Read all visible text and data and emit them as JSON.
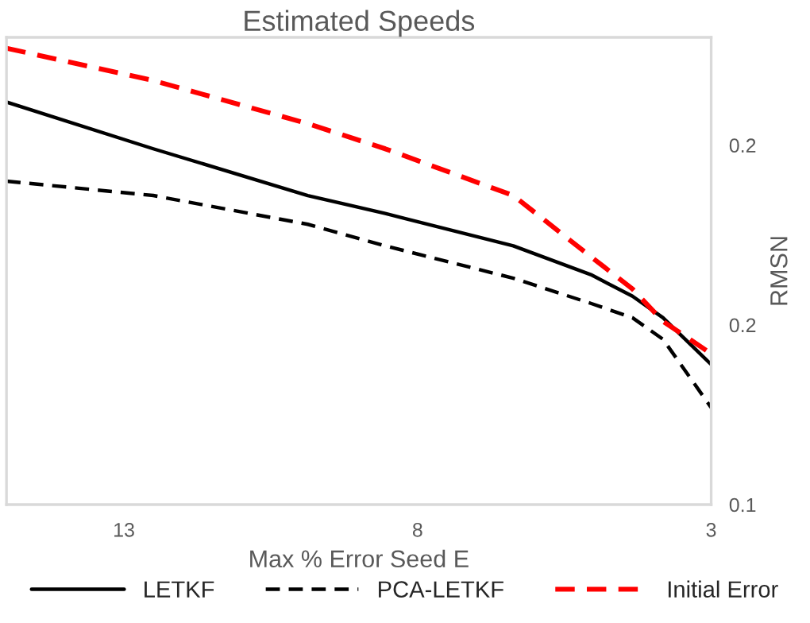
{
  "chart_data": {
    "type": "line",
    "title": "Estimated Speeds",
    "xlabel": "Max % Error Seed E",
    "ylabel": "RMSN",
    "xlim": [
      15,
      3
    ],
    "xticks": [
      13,
      8,
      3
    ],
    "ylim": [
      0.1,
      0.23
    ],
    "yticks": [
      {
        "value": 0.1,
        "label": "0.1"
      },
      {
        "value": 0.15,
        "label": "0.2"
      },
      {
        "value": 0.2,
        "label": "0.2"
      }
    ],
    "x": [
      15,
      12.5,
      9.87,
      8.55,
      6.37,
      5.05,
      4.34,
      3.82,
      3
    ],
    "series": [
      {
        "name": "LETKF",
        "color": "#000000",
        "line_style": "solid",
        "values": [
          0.212,
          0.199,
          0.186,
          0.181,
          0.172,
          0.164,
          0.158,
          0.152,
          0.139
        ]
      },
      {
        "name": "PCA-LETKF",
        "color": "#000000",
        "line_style": "dashed",
        "values": [
          0.19,
          0.186,
          0.178,
          0.172,
          0.163,
          0.156,
          0.152,
          0.146,
          0.127
        ]
      },
      {
        "name": "Initial Error",
        "color": "#ff0000",
        "line_style": "dashed",
        "values": [
          0.227,
          0.218,
          0.206,
          0.199,
          0.186,
          0.169,
          0.16,
          0.151,
          0.142
        ]
      }
    ],
    "legend": "bottom",
    "grid": false
  }
}
